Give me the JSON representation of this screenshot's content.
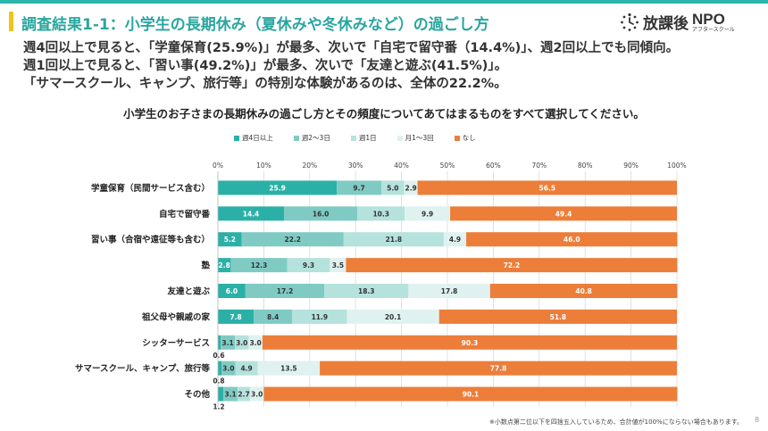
{
  "header": {
    "title": "調査結果1-1：小学生の長期休み（夏休みや冬休みなど）の過ごし方",
    "logo_text": "放課後",
    "logo_npo": "NPO",
    "logo_sub": "アフタースクール",
    "accent_color": "#2bb5ad",
    "marker_color": "#f0c419"
  },
  "summary": [
    "週4回以上で見ると、「学童保育(25.9%)」が最多、次いで「自宅で留守番（14.4%)」、週2回以上でも同傾向。",
    "週1回以上で見ると、「習い事(49.2%)」が最多、次いで「友達と遊ぶ(41.5%)」。",
    "「サマースクール、キャンプ、旅行等」の特別な体験があるのは、全体の22.2%。"
  ],
  "question": "小学生のお子さまの長期休みの過ごし方とその頻度についてあてはまるものをすべて選択してください。",
  "footnote": "※小数点第二位以下を四捨五入しているため、合計値が100%にならない場合もあります。",
  "page_number": "8",
  "chart_data": {
    "type": "bar",
    "orientation": "horizontal",
    "stacked": true,
    "title": "小学生のお子さまの長期休みの過ごし方とその頻度についてあてはまるものをすべて選択してください。",
    "xlabel": "",
    "ylabel": "",
    "xlim": [
      0,
      100
    ],
    "tick_labels": [
      "0%",
      "10%",
      "20%",
      "30%",
      "40%",
      "50%",
      "60%",
      "70%",
      "80%",
      "90%",
      "100%"
    ],
    "legend_position": "top",
    "categories": [
      "学童保育（民間サービス含む）",
      "自宅で留守番",
      "習い事（合宿や遠征等も含む）",
      "塾",
      "友達と遊ぶ",
      "祖父母や親戚の家",
      "シッターサービス",
      "サマースクール、キャンプ、旅行等",
      "その他"
    ],
    "series": [
      {
        "name": "週4日以上",
        "color": "#2bb0a8",
        "values": [
          25.9,
          14.4,
          5.2,
          2.8,
          6.0,
          7.8,
          0.6,
          0.8,
          1.2
        ]
      },
      {
        "name": "週2〜3日",
        "color": "#7fcbc4",
        "values": [
          9.7,
          16.0,
          22.2,
          12.3,
          17.2,
          8.4,
          3.1,
          3.0,
          3.1
        ]
      },
      {
        "name": "週1日",
        "color": "#b5e2dd",
        "values": [
          5.0,
          10.3,
          21.8,
          9.3,
          18.3,
          11.9,
          3.0,
          4.9,
          2.7
        ]
      },
      {
        "name": "月1〜3回",
        "color": "#dff2f0",
        "values": [
          2.9,
          9.9,
          4.9,
          3.5,
          17.8,
          20.1,
          3.0,
          13.5,
          3.0
        ]
      },
      {
        "name": "なし",
        "color": "#ec7e3a",
        "values": [
          56.5,
          49.4,
          46.0,
          72.2,
          40.8,
          51.8,
          90.3,
          77.8,
          90.1
        ]
      }
    ]
  }
}
